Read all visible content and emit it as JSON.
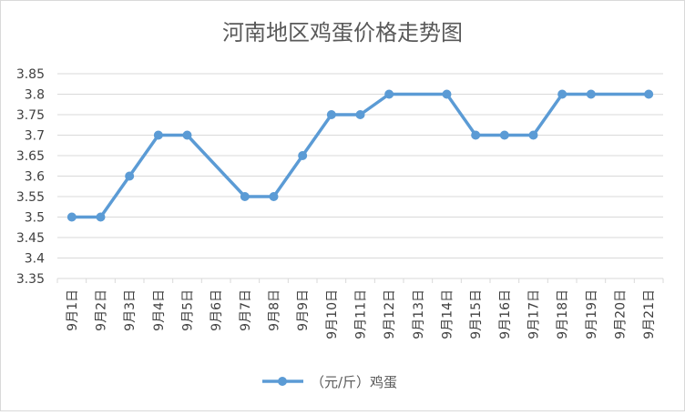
{
  "chart_data": {
    "type": "line",
    "title": "河南地区鸡蛋价格走势图",
    "xlabel": "",
    "ylabel": "",
    "categories": [
      "9月1日",
      "9月2日",
      "9月3日",
      "9月4日",
      "9月5日",
      "9月6日",
      "9月7日",
      "9月8日",
      "9月9日",
      "9月10日",
      "9月11日",
      "9月12日",
      "9月13日",
      "9月14日",
      "9月15日",
      "9月16日",
      "9月17日",
      "9月18日",
      "9月19日",
      "9月20日",
      "9月21日"
    ],
    "series": [
      {
        "name": "（元/斤）鸡蛋",
        "values": [
          3.5,
          3.5,
          3.6,
          3.7,
          3.7,
          null,
          3.55,
          3.55,
          3.65,
          3.75,
          3.75,
          3.8,
          null,
          3.8,
          3.7,
          3.7,
          3.7,
          3.8,
          3.8,
          null,
          3.8
        ],
        "color": "#5b9bd5"
      }
    ],
    "ylim": [
      3.35,
      3.85
    ],
    "yticks": [
      "3.35",
      "3.4",
      "3.45",
      "3.5",
      "3.55",
      "3.6",
      "3.65",
      "3.7",
      "3.75",
      "3.8",
      "3.85"
    ],
    "grid": true,
    "legend": "bottom"
  }
}
